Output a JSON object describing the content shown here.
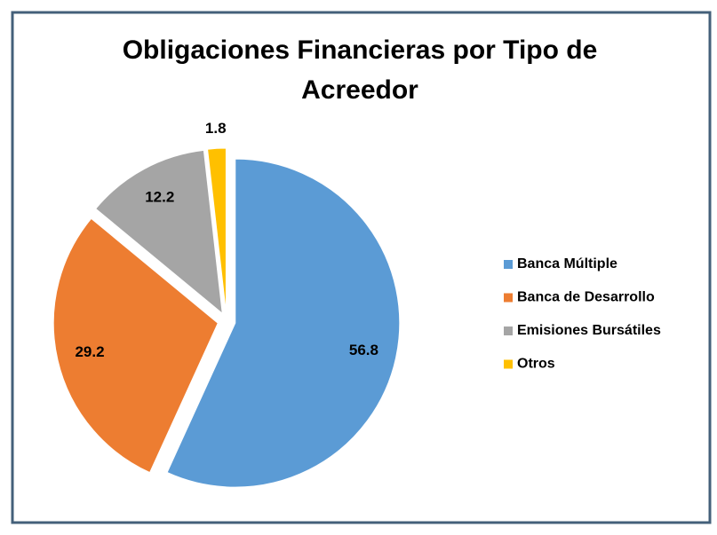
{
  "chart_data": {
    "type": "pie",
    "title": [
      "Obligaciones Financieras por Tipo de",
      "Acreedor"
    ],
    "categories": [
      "Banca Múltiple",
      "Banca de Desarrollo",
      "Emisiones Bursátiles",
      "Otros"
    ],
    "values": [
      56.8,
      29.2,
      12.2,
      1.8
    ],
    "colors": [
      "#5b9bd5",
      "#ed7d31",
      "#a5a5a5",
      "#ffc000"
    ],
    "legend": "right"
  }
}
